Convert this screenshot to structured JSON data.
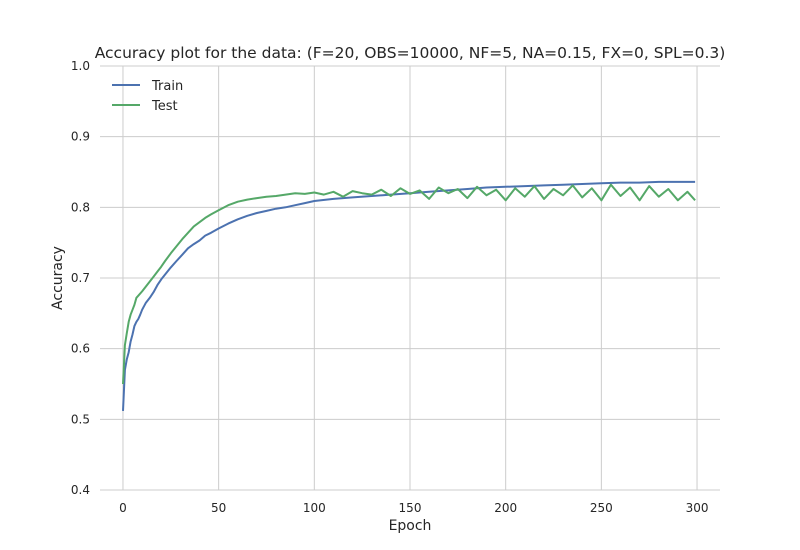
{
  "chart_data": {
    "type": "line",
    "title": "Accuracy plot for the data: (F=20, OBS=10000, NF=5, NA=0.15, FX=0, SPL=0.3)",
    "xlabel": "Epoch",
    "ylabel": "Accuracy",
    "xlim": [
      -12,
      312
    ],
    "ylim": [
      0.4,
      1.0
    ],
    "xticks": [
      0,
      50,
      100,
      150,
      200,
      250,
      300
    ],
    "yticks": [
      0.4,
      0.5,
      0.6,
      0.7,
      0.8,
      0.9,
      1.0
    ],
    "xtick_labels": [
      "0",
      "50",
      "100",
      "150",
      "200",
      "250",
      "300"
    ],
    "ytick_labels": [
      "0.4",
      "0.5",
      "0.6",
      "0.7",
      "0.8",
      "0.9",
      "1.0"
    ],
    "grid": true,
    "legend_position": "top-left",
    "series": [
      {
        "name": "Train",
        "color": "#4c72b0",
        "x": [
          0,
          1,
          2,
          3,
          4,
          5,
          6,
          7,
          8,
          9,
          10,
          12,
          14,
          16,
          18,
          20,
          22,
          25,
          28,
          31,
          34,
          37,
          40,
          43,
          46,
          50,
          55,
          60,
          65,
          70,
          75,
          80,
          85,
          90,
          95,
          100,
          110,
          120,
          130,
          140,
          150,
          160,
          170,
          180,
          190,
          200,
          210,
          220,
          230,
          240,
          250,
          260,
          270,
          280,
          290,
          299
        ],
        "y": [
          0.512,
          0.57,
          0.585,
          0.595,
          0.61,
          0.62,
          0.632,
          0.638,
          0.642,
          0.648,
          0.655,
          0.665,
          0.672,
          0.68,
          0.69,
          0.698,
          0.705,
          0.715,
          0.724,
          0.733,
          0.742,
          0.748,
          0.753,
          0.76,
          0.764,
          0.77,
          0.777,
          0.783,
          0.788,
          0.792,
          0.795,
          0.798,
          0.8,
          0.803,
          0.806,
          0.809,
          0.812,
          0.814,
          0.816,
          0.818,
          0.82,
          0.822,
          0.824,
          0.826,
          0.828,
          0.829,
          0.83,
          0.831,
          0.832,
          0.833,
          0.834,
          0.835,
          0.835,
          0.836,
          0.836,
          0.836
        ]
      },
      {
        "name": "Test",
        "color": "#55a868",
        "x": [
          0,
          1,
          2,
          3,
          4,
          5,
          6,
          7,
          8,
          10,
          12,
          14,
          16,
          18,
          20,
          22,
          25,
          28,
          31,
          34,
          37,
          40,
          43,
          46,
          50,
          55,
          60,
          65,
          70,
          75,
          80,
          85,
          90,
          95,
          100,
          105,
          110,
          115,
          120,
          125,
          130,
          135,
          140,
          145,
          150,
          155,
          160,
          165,
          170,
          175,
          180,
          185,
          190,
          195,
          200,
          205,
          210,
          215,
          220,
          225,
          230,
          235,
          240,
          245,
          250,
          255,
          260,
          265,
          270,
          275,
          280,
          285,
          290,
          295,
          299
        ],
        "y": [
          0.55,
          0.605,
          0.622,
          0.638,
          0.648,
          0.655,
          0.662,
          0.672,
          0.675,
          0.681,
          0.688,
          0.695,
          0.702,
          0.709,
          0.716,
          0.724,
          0.735,
          0.745,
          0.755,
          0.764,
          0.773,
          0.779,
          0.785,
          0.79,
          0.796,
          0.803,
          0.808,
          0.811,
          0.813,
          0.815,
          0.816,
          0.818,
          0.82,
          0.819,
          0.821,
          0.818,
          0.822,
          0.815,
          0.823,
          0.82,
          0.818,
          0.825,
          0.816,
          0.827,
          0.819,
          0.824,
          0.812,
          0.828,
          0.82,
          0.826,
          0.813,
          0.829,
          0.817,
          0.825,
          0.81,
          0.827,
          0.815,
          0.83,
          0.812,
          0.826,
          0.817,
          0.831,
          0.814,
          0.827,
          0.81,
          0.832,
          0.816,
          0.828,
          0.81,
          0.83,
          0.815,
          0.826,
          0.81,
          0.822,
          0.81
        ]
      }
    ]
  }
}
